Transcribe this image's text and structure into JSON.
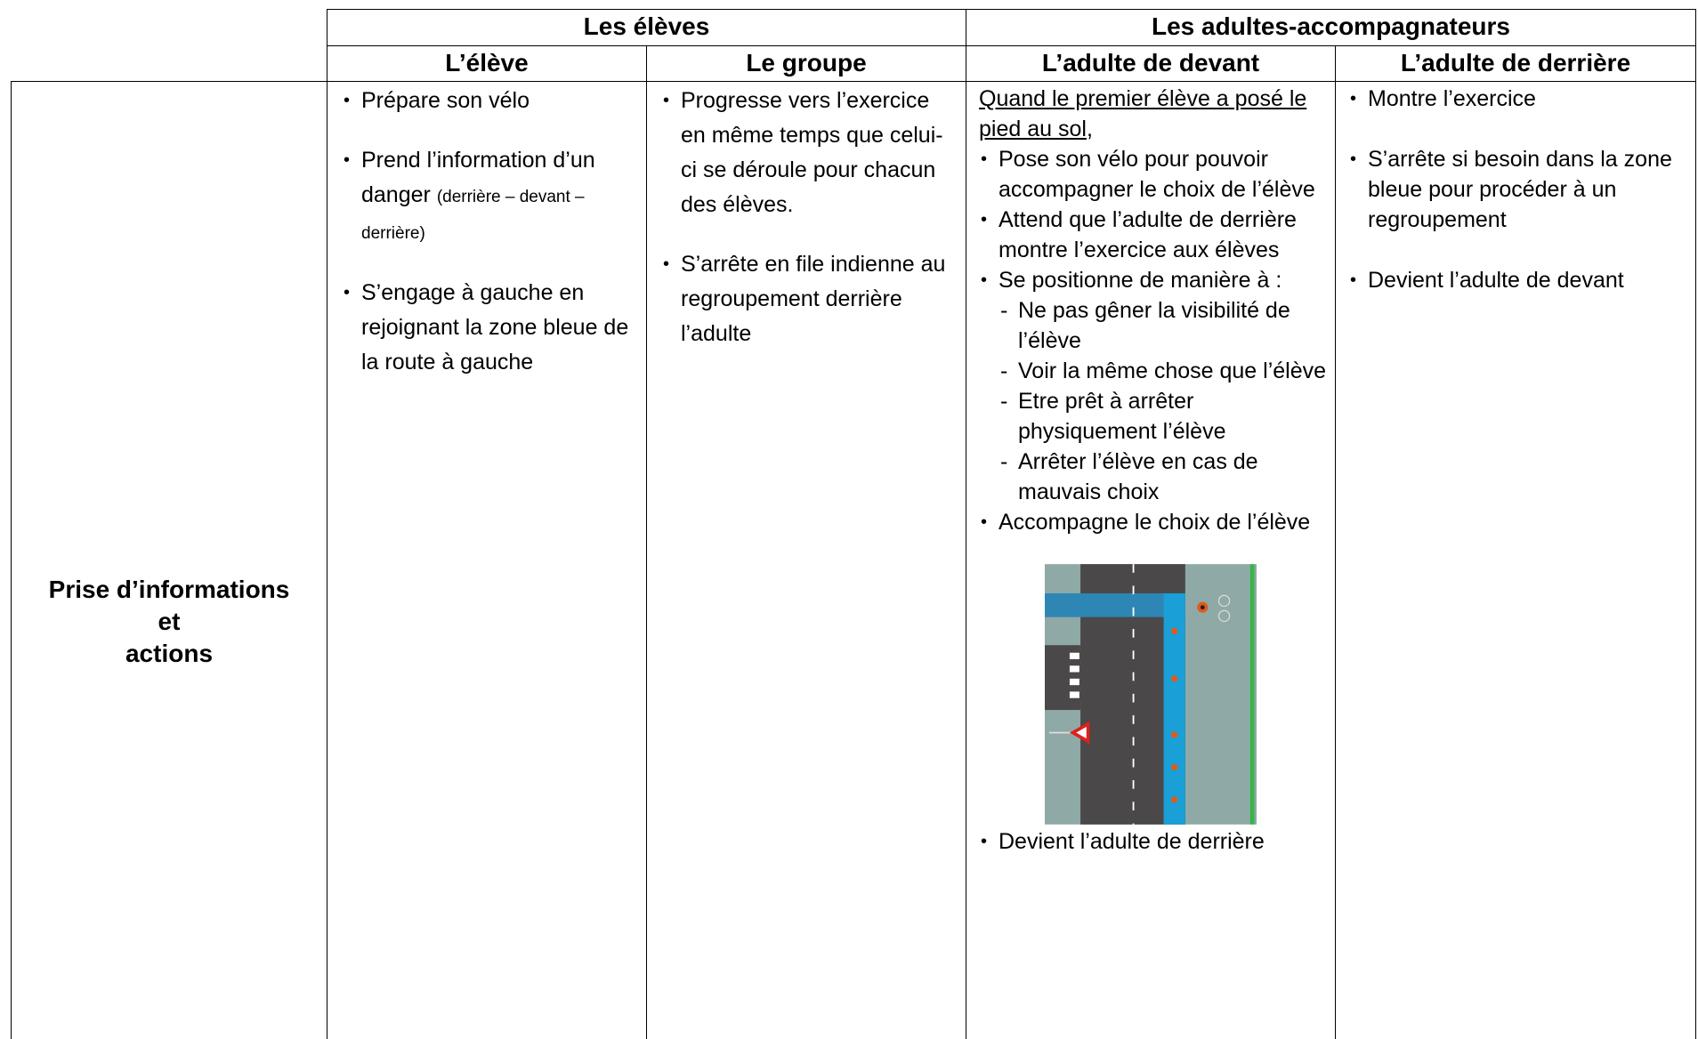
{
  "table": {
    "group_headers": [
      "Les élèves",
      "Les adultes-accompagnateurs"
    ],
    "column_headers": [
      "L’élève",
      "Le groupe",
      "L’adulte de devant",
      "L’adulte de derrière"
    ],
    "row_header": [
      "Prise d’informations",
      "et",
      "actions"
    ],
    "eleve": [
      {
        "text": "Prépare son vélo"
      },
      {
        "text": "Prend l’information d’un danger",
        "note": "(derrière – devant – derrière)"
      },
      {
        "text": "S’engage à gauche en rejoignant la zone bleue de la route à gauche"
      }
    ],
    "groupe": [
      {
        "text": "Progresse vers l’exercice en même temps que celui-ci se déroule pour chacun des élèves."
      },
      {
        "text": "S’arrête en file indienne au regroupement derrière l’adulte"
      }
    ],
    "adulte_devant": {
      "intro": "Quand le premier élève a posé le pied au sol",
      "intro_end": ",",
      "items": [
        {
          "text": "Pose son vélo pour pouvoir accompagner le choix de l’élève"
        },
        {
          "text": "Attend que l’adulte de derrière montre l’exercice aux élèves"
        },
        {
          "text": "Se positionne de manière à :",
          "sub": [
            "Ne pas gêner la visibilité de l’élève",
            "Voir la même chose que l’élève",
            "Etre prêt à arrêter physiquement l’élève",
            "Arrêter l’élève en cas de mauvais choix"
          ]
        },
        {
          "text": "Accompagne le choix de l’élève"
        }
      ],
      "after_image": "Devient l’adulte de derrière"
    },
    "adulte_derriere": [
      {
        "text": "Montre l’exercice"
      },
      {
        "text": "S’arrête si besoin dans la zone bleue pour procéder à un regroupement"
      },
      {
        "text": "Devient l’adulte de devant"
      }
    ]
  }
}
